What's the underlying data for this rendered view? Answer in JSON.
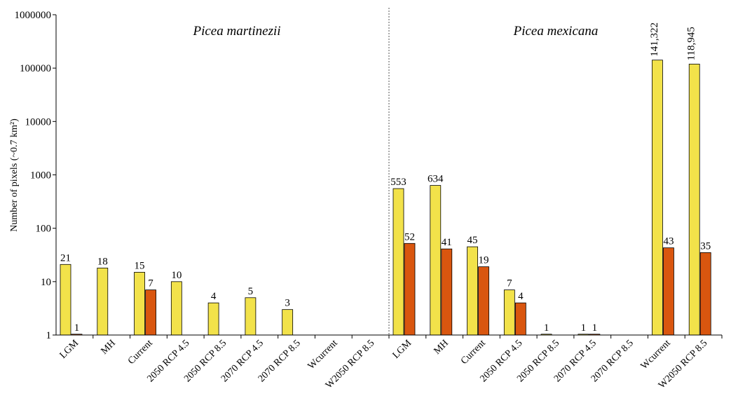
{
  "chart_data": {
    "type": "bar",
    "yscale": "log",
    "ylim": [
      1,
      1000000
    ],
    "ylabel": "Number of pixels (~0.7 km²)",
    "yticks": [
      "1",
      "10",
      "100",
      "1000",
      "10000",
      "100000",
      "1000000"
    ],
    "colors": {
      "series_a": "#f2e24a",
      "series_b": "#d9560f",
      "axis": "#000000",
      "divider": "#555555"
    },
    "panels": [
      {
        "title": "Picea martinezii",
        "categories": [
          "LGM",
          "MH",
          "Current",
          "2050 RCP 4.5",
          "2050 RCP 8.5",
          "2070 RCP 4.5",
          "2070 RCP 8.5",
          "Wcurrent",
          "W2050 RCP 8.5"
        ],
        "series": [
          {
            "values": [
              21,
              18,
              15,
              10,
              4,
              5,
              3,
              null,
              null
            ],
            "labels": [
              "21",
              "18",
              "15",
              "10",
              "4",
              "5",
              "3",
              "",
              ""
            ]
          },
          {
            "values": [
              1,
              null,
              7,
              null,
              null,
              null,
              null,
              null,
              null
            ],
            "labels": [
              "1",
              "",
              "7",
              "",
              "",
              "",
              "",
              "",
              ""
            ]
          }
        ]
      },
      {
        "title": "Picea mexicana",
        "categories": [
          "LGM",
          "MH",
          "Current",
          "2050 RCP 4.5",
          "2050 RCP 8.5",
          "2070 RCP 4.5",
          "2070 RCP 8.5",
          "Wcurrent",
          "W2050 RCP 8.5"
        ],
        "series": [
          {
            "values": [
              553,
              634,
              45,
              7,
              1,
              1,
              null,
              141322,
              118945
            ],
            "labels": [
              "553",
              "634",
              "45",
              "7",
              "1",
              "1",
              "",
              "141,322",
              "118,945"
            ]
          },
          {
            "values": [
              52,
              41,
              19,
              4,
              null,
              1,
              null,
              43,
              35
            ],
            "labels": [
              "52",
              "41",
              "19",
              "4",
              "",
              "1",
              "",
              "43",
              "35"
            ]
          }
        ]
      }
    ]
  }
}
